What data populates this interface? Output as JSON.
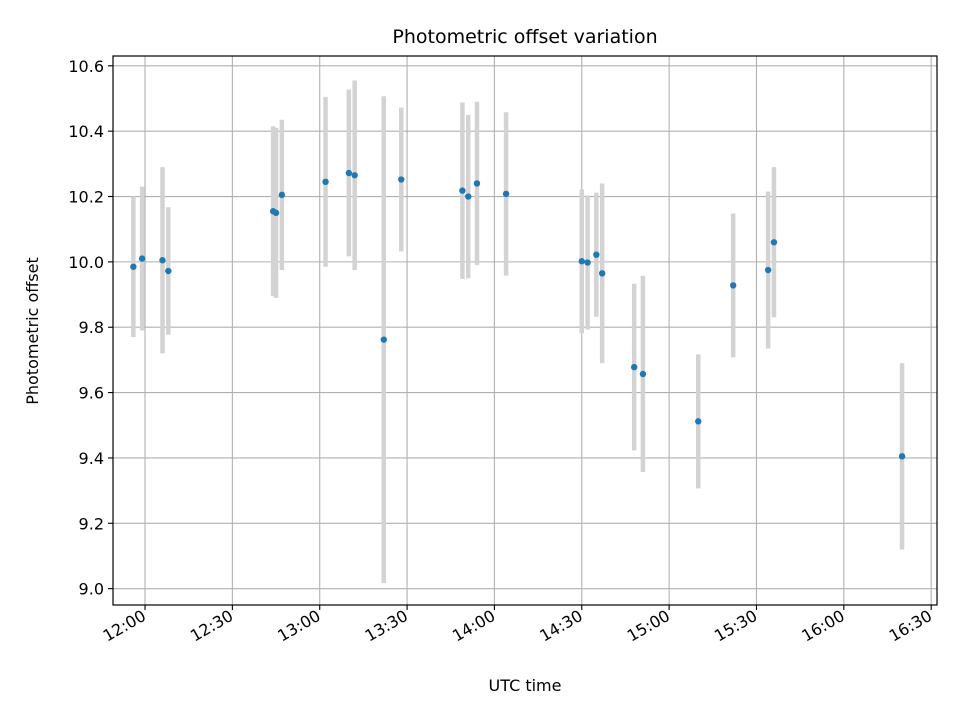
{
  "chart_data": {
    "type": "scatter",
    "title": "Photometric offset variation",
    "xlabel": "UTC time",
    "ylabel": "Photometric offset",
    "x_ticks": [
      "12:00",
      "12:30",
      "13:00",
      "13:30",
      "14:00",
      "14:30",
      "15:00",
      "15:30",
      "16:00",
      "16:30"
    ],
    "y_ticks": [
      "9.0",
      "9.2",
      "9.4",
      "9.6",
      "9.8",
      "10.0",
      "10.2",
      "10.4",
      "10.6"
    ],
    "xlim": [
      "11:49",
      "16:32"
    ],
    "ylim": [
      8.95,
      10.63
    ],
    "grid": true,
    "marker_color": "#1f77b4",
    "errorbar_color": "#d3d3d3",
    "points": [
      {
        "time": "11:56",
        "y": 9.985,
        "err": 0.215
      },
      {
        "time": "11:59",
        "y": 10.01,
        "err": 0.22
      },
      {
        "time": "12:06",
        "y": 10.005,
        "err": 0.285
      },
      {
        "time": "12:08",
        "y": 9.972,
        "err": 0.195
      },
      {
        "time": "12:44",
        "y": 10.155,
        "err": 0.26
      },
      {
        "time": "12:45",
        "y": 10.15,
        "err": 0.26
      },
      {
        "time": "12:47",
        "y": 10.205,
        "err": 0.23
      },
      {
        "time": "13:02",
        "y": 10.245,
        "err": 0.26
      },
      {
        "time": "13:10",
        "y": 10.272,
        "err": 0.255
      },
      {
        "time": "13:12",
        "y": 10.265,
        "err": 0.29
      },
      {
        "time": "13:22",
        "y": 9.762,
        "err": 0.745
      },
      {
        "time": "13:28",
        "y": 10.252,
        "err": 0.22
      },
      {
        "time": "13:49",
        "y": 10.218,
        "err": 0.27
      },
      {
        "time": "13:51",
        "y": 10.2,
        "err": 0.25
      },
      {
        "time": "13:54",
        "y": 10.24,
        "err": 0.25
      },
      {
        "time": "14:04",
        "y": 10.208,
        "err": 0.25
      },
      {
        "time": "14:30",
        "y": 10.002,
        "err": 0.22
      },
      {
        "time": "14:32",
        "y": 9.998,
        "err": 0.205
      },
      {
        "time": "14:35",
        "y": 10.022,
        "err": 0.19
      },
      {
        "time": "14:37",
        "y": 9.965,
        "err": 0.275
      },
      {
        "time": "14:48",
        "y": 9.678,
        "err": 0.255
      },
      {
        "time": "14:51",
        "y": 9.657,
        "err": 0.3
      },
      {
        "time": "15:10",
        "y": 9.512,
        "err": 0.205
      },
      {
        "time": "15:22",
        "y": 9.928,
        "err": 0.22
      },
      {
        "time": "15:34",
        "y": 9.975,
        "err": 0.24
      },
      {
        "time": "15:36",
        "y": 10.06,
        "err": 0.23
      },
      {
        "time": "16:20",
        "y": 9.405,
        "err": 0.285
      }
    ]
  }
}
